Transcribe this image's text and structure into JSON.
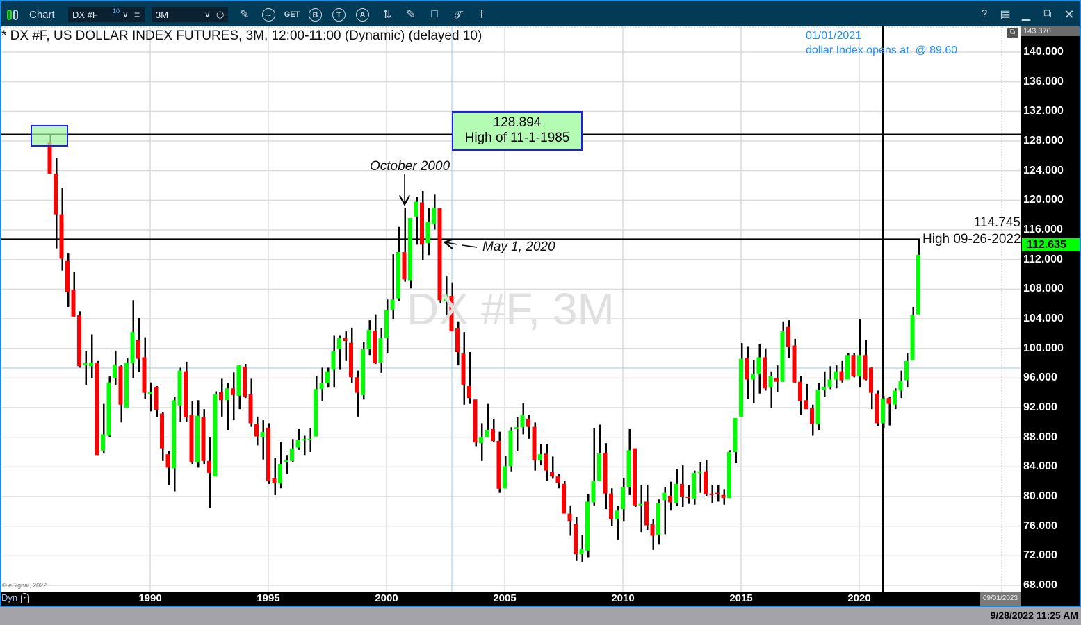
{
  "toolbar": {
    "app_label": "Chart",
    "symbol": "DX #F",
    "symbol_badge": "10",
    "interval": "3M",
    "get_label": "GET",
    "circle_buttons": [
      "B",
      "T",
      "A"
    ],
    "right_buttons": {
      "help": "?"
    },
    "colors": {
      "background": "#033a55",
      "frame": "#1c8fe3"
    }
  },
  "chart": {
    "title": "* DX #F, US DOLLAR INDEX FUTURES, 3M, 12:00-11:00 (Dynamic) (delayed 10)",
    "watermark": "DX #F, 3M",
    "copyright": "© eSignal, 2022",
    "note_date": "01/01/2021",
    "note_text": "dollar Index opens at  @ 89.60",
    "note_color": "#1e90ff",
    "high_box_value": "128.894",
    "high_box_label": "High of 11-1-1985",
    "october_label": "October 2000",
    "may_label": "May 1, 2020",
    "recent_high_value": "114.745",
    "recent_high_label": "High 09-26-2022",
    "axis_top_value": "143.370",
    "last_price": "112.635",
    "last_price_color": "#00ff00",
    "axis_mode": "Dyn",
    "axis_end_date": "09/01/2023"
  },
  "status": {
    "datetime": "9/28/2022 11:25 AM"
  },
  "chart_data": {
    "type": "candlestick",
    "title": "* DX #F, US DOLLAR INDEX FUTURES, 3M, 12:00-11:00 (Dynamic) (delayed 10)",
    "ylim": [
      68,
      140
    ],
    "y_ticks": [
      "140.000",
      "136.000",
      "132.000",
      "128.000",
      "124.000",
      "120.000",
      "116.000",
      "112.000",
      "108.000",
      "104.000",
      "100.000",
      "96.000",
      "92.000",
      "88.000",
      "84.000",
      "80.000",
      "76.000",
      "72.000",
      "68.000"
    ],
    "x_ticks": [
      "1990",
      "1995",
      "2000",
      "2005",
      "2010",
      "2015",
      "2020"
    ],
    "grid": true,
    "up_color": "#00ff00",
    "down_color": "#ff0000",
    "horizontal_lines": [
      128.894,
      114.745
    ],
    "vertical_line_date": "2021-01",
    "bars_columns": [
      "date",
      "open",
      "high",
      "low",
      "close"
    ],
    "bars": [
      [
        "1985-10",
        127.8,
        128.894,
        123.6,
        123.6
      ],
      [
        "1986-01",
        123.6,
        125.7,
        113.5,
        118.1
      ],
      [
        "1986-04",
        118.1,
        121.7,
        110.5,
        112.1
      ],
      [
        "1986-07",
        111.8,
        112.8,
        105.6,
        107.6
      ],
      [
        "1986-10",
        107.9,
        110.3,
        104.3,
        104.3
      ],
      [
        "1987-01",
        104.5,
        105.0,
        97.4,
        97.6
      ],
      [
        "1987-04",
        97.7,
        99.6,
        95.1,
        98.0
      ],
      [
        "1987-07",
        97.6,
        101.9,
        96.0,
        98.1
      ],
      [
        "1987-10",
        98.1,
        98.3,
        85.6,
        85.6
      ],
      [
        "1988-01",
        86.2,
        92.5,
        85.8,
        88.4
      ],
      [
        "1988-04",
        88.2,
        96.2,
        88.0,
        95.4
      ],
      [
        "1988-07",
        96.0,
        99.7,
        95.1,
        97.8
      ],
      [
        "1988-10",
        97.6,
        97.8,
        90.0,
        92.4
      ],
      [
        "1989-01",
        92.0,
        98.7,
        91.9,
        98.1
      ],
      [
        "1989-04",
        98.0,
        106.5,
        96.0,
        102.2
      ],
      [
        "1989-07",
        101.1,
        104.1,
        96.8,
        98.6
      ],
      [
        "1989-10",
        98.8,
        101.5,
        93.2,
        94.0
      ],
      [
        "1990-01",
        93.8,
        95.4,
        91.5,
        94.1
      ],
      [
        "1990-04",
        94.8,
        94.9,
        90.7,
        91.7
      ],
      [
        "1990-07",
        91.2,
        91.4,
        84.8,
        86.5
      ],
      [
        "1990-10",
        85.7,
        86.1,
        81.5,
        83.9
      ],
      [
        "1991-01",
        83.8,
        93.5,
        80.7,
        93.0
      ],
      [
        "1991-04",
        92.3,
        97.4,
        90.1,
        97.0
      ],
      [
        "1991-07",
        96.9,
        98.2,
        90.1,
        90.7
      ],
      [
        "1991-10",
        91.0,
        92.9,
        84.4,
        84.7
      ],
      [
        "1992-01",
        84.6,
        93.0,
        83.9,
        90.9
      ],
      [
        "1992-04",
        90.7,
        91.8,
        84.4,
        84.8
      ],
      [
        "1992-07",
        84.8,
        88.0,
        78.5,
        83.2
      ],
      [
        "1992-10",
        82.7,
        94.2,
        82.7,
        93.8
      ],
      [
        "1993-01",
        94.1,
        95.9,
        90.8,
        93.0
      ],
      [
        "1993-04",
        93.0,
        95.3,
        89.0,
        94.6
      ],
      [
        "1993-07",
        94.6,
        96.75,
        90.3,
        93.7
      ],
      [
        "1993-10",
        93.6,
        97.7,
        91.8,
        97.7
      ],
      [
        "1994-01",
        97.5,
        97.9,
        93.3,
        93.5
      ],
      [
        "1994-04",
        93.8,
        95.9,
        89.4,
        89.9
      ],
      [
        "1994-07",
        89.8,
        90.8,
        86.9,
        88.1
      ],
      [
        "1994-10",
        88.0,
        90.3,
        85.0,
        88.7
      ],
      [
        "1995-01",
        89.3,
        89.9,
        81.7,
        82.1
      ],
      [
        "1995-04",
        82.5,
        85.2,
        80.2,
        81.8
      ],
      [
        "1995-07",
        81.75,
        87.4,
        81.1,
        84.4
      ],
      [
        "1995-10",
        84.6,
        85.6,
        83.1,
        84.9
      ],
      [
        "1996-01",
        84.8,
        87.75,
        84.6,
        86.5
      ],
      [
        "1996-04",
        86.6,
        89.1,
        86.3,
        87.6
      ],
      [
        "1996-07",
        87.6,
        88.2,
        85.6,
        87.75
      ],
      [
        "1996-10",
        87.7,
        89.2,
        86.0,
        87.8
      ],
      [
        "1997-01",
        88.1,
        96.3,
        88.1,
        94.5
      ],
      [
        "1997-04",
        94.5,
        97.4,
        92.9,
        95.3
      ],
      [
        "1997-07",
        95.3,
        97.4,
        94.7,
        96.9
      ],
      [
        "1997-10",
        97.1,
        101.7,
        94.7,
        99.6
      ],
      [
        "1998-01",
        99.9,
        101.7,
        97.1,
        101.4
      ],
      [
        "1998-04",
        101.4,
        102.3,
        98.3,
        101.0
      ],
      [
        "1998-07",
        100.75,
        102.8,
        95.3,
        96.1
      ],
      [
        "1998-10",
        96.1,
        97.0,
        90.8,
        94.0
      ],
      [
        "1999-01",
        93.7,
        100.9,
        93.1,
        99.9
      ],
      [
        "1999-04",
        99.9,
        103.8,
        99.1,
        102.5
      ],
      [
        "1999-07",
        102.4,
        104.6,
        97.9,
        98.0
      ],
      [
        "1999-10",
        98.1,
        102.75,
        96.7,
        101.4
      ],
      [
        "2000-01",
        101.4,
        106.6,
        99.4,
        105.2
      ],
      [
        "2000-04",
        105.2,
        112.7,
        103.9,
        106.6
      ],
      [
        "2000-07",
        106.75,
        116.4,
        106.4,
        113.0
      ],
      [
        "2000-10",
        113.0,
        118.9,
        109.0,
        109.3
      ],
      [
        "2001-01",
        109.2,
        117.6,
        108.1,
        117.6
      ],
      [
        "2001-04",
        117.8,
        120.4,
        114.0,
        119.8
      ],
      [
        "2001-07",
        119.7,
        121.25,
        111.9,
        114.0
      ],
      [
        "2001-10",
        114.2,
        118.9,
        112.6,
        117.1
      ],
      [
        "2002-01",
        116.8,
        120.75,
        116.05,
        119.0
      ],
      [
        "2002-04",
        118.9,
        118.9,
        106.05,
        106.5
      ],
      [
        "2002-07",
        106.35,
        109.7,
        104.2,
        107.3
      ],
      [
        "2002-10",
        107.1,
        108.9,
        102.3,
        102.3
      ],
      [
        "2003-01",
        102.7,
        103.65,
        97.7,
        99.5
      ],
      [
        "2003-04",
        99.3,
        102.2,
        92.4,
        95.1
      ],
      [
        "2003-07",
        94.9,
        99.5,
        92.5,
        93.3
      ],
      [
        "2003-10",
        93.1,
        93.1,
        86.8,
        87.3
      ],
      [
        "2004-01",
        87.2,
        89.9,
        84.8,
        88.0
      ],
      [
        "2004-04",
        88.0,
        92.5,
        88.0,
        89.0
      ],
      [
        "2004-07",
        89.1,
        90.5,
        87.3,
        87.5
      ],
      [
        "2004-10",
        87.5,
        88.75,
        80.5,
        81.05
      ],
      [
        "2005-01",
        81.1,
        85.5,
        81.1,
        84.1
      ],
      [
        "2005-04",
        84.1,
        89.35,
        83.4,
        88.95
      ],
      [
        "2005-07",
        89.1,
        90.7,
        86.1,
        89.35
      ],
      [
        "2005-10",
        89.35,
        92.6,
        88.4,
        91.0
      ],
      [
        "2006-01",
        90.5,
        91.0,
        87.8,
        89.4
      ],
      [
        "2006-04",
        89.4,
        90.0,
        83.5,
        84.9
      ],
      [
        "2006-07",
        84.9,
        87.1,
        84.2,
        85.7
      ],
      [
        "2006-10",
        85.8,
        87.1,
        82.1,
        83.5
      ],
      [
        "2007-01",
        83.3,
        85.4,
        82.4,
        82.7
      ],
      [
        "2007-04",
        82.7,
        83.0,
        81.1,
        81.8
      ],
      [
        "2007-07",
        81.7,
        82.1,
        77.7,
        77.7
      ],
      [
        "2007-10",
        77.7,
        78.8,
        74.7,
        76.7
      ],
      [
        "2008-01",
        76.3,
        77.2,
        71.3,
        72.2
      ],
      [
        "2008-04",
        72.2,
        74.8,
        71.1,
        72.9
      ],
      [
        "2008-07",
        72.7,
        80.3,
        71.8,
        79.3
      ],
      [
        "2008-10",
        79.2,
        89.2,
        78.8,
        82.1
      ],
      [
        "2009-01",
        82.1,
        89.7,
        82.1,
        85.8
      ],
      [
        "2009-04",
        85.9,
        87.2,
        78.3,
        80.4
      ],
      [
        "2009-07",
        80.4,
        81.1,
        76.0,
        76.9
      ],
      [
        "2009-10",
        76.9,
        78.75,
        74.2,
        78.1
      ],
      [
        "2010-01",
        78.3,
        82.5,
        76.7,
        81.25
      ],
      [
        "2010-04",
        81.25,
        89.1,
        80.2,
        86.25
      ],
      [
        "2010-07",
        86.5,
        86.5,
        78.6,
        78.8
      ],
      [
        "2010-10",
        78.8,
        81.5,
        75.2,
        79.0
      ],
      [
        "2011-01",
        79.3,
        81.6,
        75.5,
        76.1
      ],
      [
        "2011-04",
        76.25,
        76.9,
        72.8,
        74.7
      ],
      [
        "2011-07",
        74.8,
        79.6,
        73.5,
        79.1
      ],
      [
        "2011-10",
        79.5,
        81.3,
        74.9,
        80.5
      ],
      [
        "2012-01",
        80.1,
        82.0,
        78.1,
        79.2
      ],
      [
        "2012-04",
        79.1,
        83.7,
        78.7,
        81.7
      ],
      [
        "2012-07",
        81.7,
        84.2,
        78.6,
        80.0
      ],
      [
        "2012-10",
        80.0,
        81.5,
        79.0,
        79.85
      ],
      [
        "2013-01",
        79.7,
        83.5,
        78.9,
        83.2
      ],
      [
        "2013-04",
        83.2,
        84.6,
        80.5,
        83.4
      ],
      [
        "2013-07",
        83.4,
        84.9,
        80.1,
        80.3
      ],
      [
        "2013-10",
        80.4,
        81.6,
        79.1,
        80.2
      ],
      [
        "2014-01",
        80.5,
        81.5,
        79.3,
        80.3
      ],
      [
        "2014-04",
        80.2,
        81.0,
        78.9,
        79.8
      ],
      [
        "2014-07",
        79.8,
        86.25,
        79.8,
        86.0
      ],
      [
        "2014-10",
        86.0,
        90.6,
        84.5,
        90.6
      ],
      [
        "2015-01",
        90.8,
        100.7,
        90.8,
        98.6
      ],
      [
        "2015-04",
        98.7,
        100.3,
        93.2,
        95.8
      ],
      [
        "2015-07",
        95.8,
        98.4,
        92.6,
        96.5
      ],
      [
        "2015-10",
        96.5,
        100.6,
        93.9,
        98.8
      ],
      [
        "2016-01",
        98.8,
        100.0,
        94.3,
        94.6
      ],
      [
        "2016-04",
        94.7,
        96.9,
        91.9,
        96.25
      ],
      [
        "2016-07",
        96.0,
        97.7,
        94.1,
        95.5
      ],
      [
        "2016-10",
        95.5,
        103.65,
        95.5,
        102.3
      ],
      [
        "2017-01",
        102.9,
        103.8,
        98.7,
        100.2
      ],
      [
        "2017-04",
        100.4,
        101.3,
        95.3,
        95.4
      ],
      [
        "2017-07",
        95.5,
        96.3,
        91.0,
        92.9
      ],
      [
        "2017-10",
        93.0,
        95.2,
        91.8,
        91.8
      ],
      [
        "2018-01",
        91.9,
        92.4,
        88.2,
        89.8
      ],
      [
        "2018-04",
        89.75,
        95.3,
        89.0,
        94.4
      ],
      [
        "2018-07",
        94.4,
        96.9,
        93.5,
        94.8
      ],
      [
        "2018-10",
        94.7,
        97.6,
        94.5,
        95.8
      ],
      [
        "2019-01",
        95.8,
        97.7,
        94.6,
        96.9
      ],
      [
        "2019-04",
        96.9,
        98.3,
        95.4,
        95.7
      ],
      [
        "2019-07",
        95.8,
        99.4,
        95.8,
        99.1
      ],
      [
        "2019-10",
        99.1,
        99.3,
        96.1,
        96.2
      ],
      [
        "2020-01",
        96.2,
        104.0,
        94.7,
        99.1
      ],
      [
        "2020-04",
        99.1,
        101.1,
        95.7,
        95.8
      ],
      [
        "2020-07",
        97.4,
        97.5,
        91.8,
        94.0
      ],
      [
        "2020-10",
        93.9,
        94.3,
        89.5,
        89.9
      ],
      [
        "2021-01",
        89.9,
        93.6,
        89.2,
        93.25
      ],
      [
        "2021-04",
        93.3,
        93.4,
        89.6,
        92.5
      ],
      [
        "2021-07",
        92.4,
        94.6,
        91.8,
        94.3
      ],
      [
        "2021-10",
        94.3,
        97.0,
        93.3,
        95.6
      ],
      [
        "2022-01",
        95.7,
        99.4,
        94.7,
        98.3
      ],
      [
        "2022-04",
        98.4,
        105.6,
        98.4,
        104.5
      ],
      [
        "2022-07",
        104.6,
        114.745,
        104.6,
        112.635
      ]
    ]
  }
}
